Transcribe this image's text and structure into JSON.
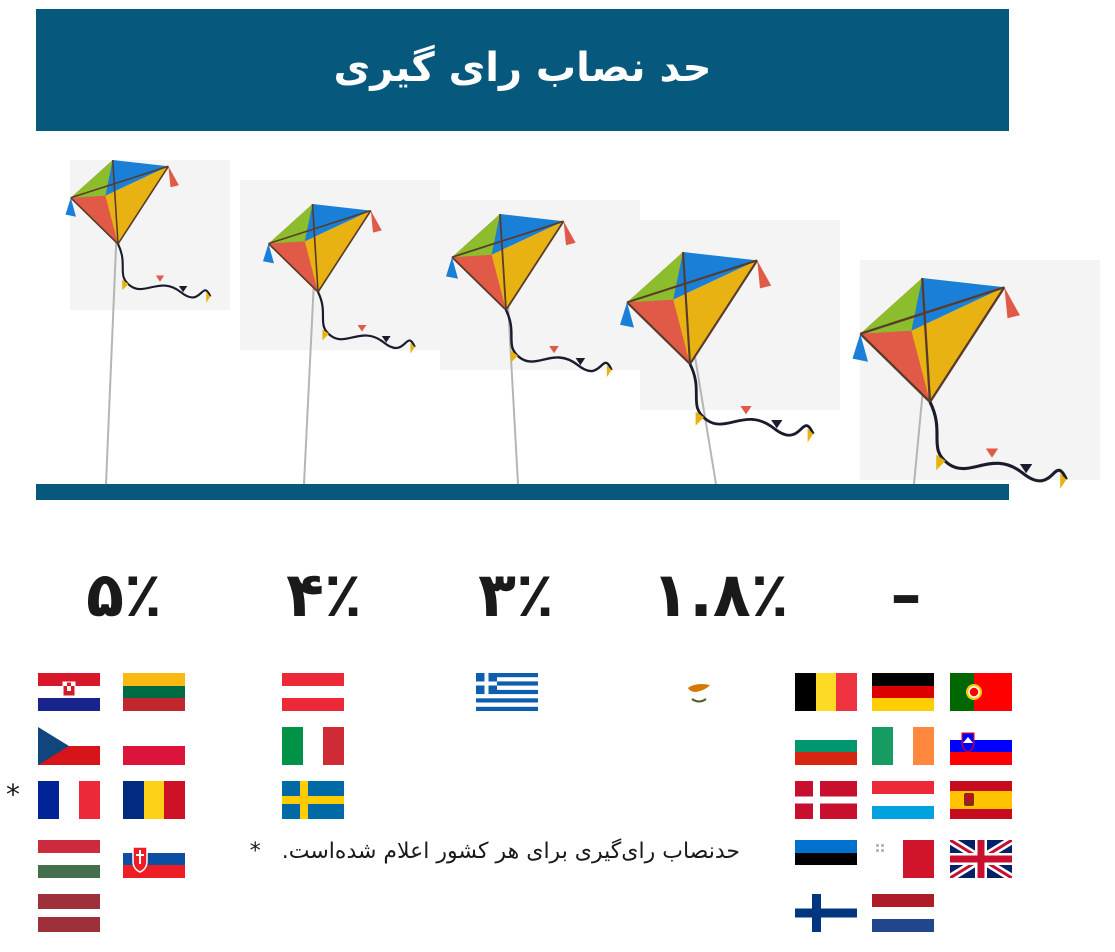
{
  "header": {
    "title": "حد نصاب رای گیری"
  },
  "thresholds": {
    "t5": "۵٪",
    "t4": "۴٪",
    "t3": "۳٪",
    "t18": "۱.۸٪",
    "none": "–"
  },
  "groups": {
    "t5": [
      "croatia-flag",
      "lithuania-flag",
      "czech-flag",
      "poland-flag",
      "france-flag",
      "romania-flag",
      "hungary-flag",
      "slovakia-flag",
      "latvia-flag"
    ],
    "t4": [
      "austria-flag",
      "italy-flag",
      "sweden-flag"
    ],
    "t3": [
      "greece-flag"
    ],
    "t18": [
      "cyprus-flag"
    ],
    "none": [
      "belgium-flag",
      "germany-flag",
      "portugal-flag",
      "bulgaria-flag",
      "ireland-flag",
      "slovenia-flag",
      "denmark-flag",
      "luxembourg-flag",
      "spain-flag",
      "estonia-flag",
      "malta-flag",
      "uk-flag",
      "finland-flag",
      "netherlands-flag"
    ]
  },
  "marker": "*",
  "footnote": {
    "text": "حدنصاب رای‌گیری برای هر کشور اعلام شده‌است.",
    "marker": "*"
  },
  "colors": {
    "header_bg": "#06597c",
    "ground": "#06597c"
  }
}
